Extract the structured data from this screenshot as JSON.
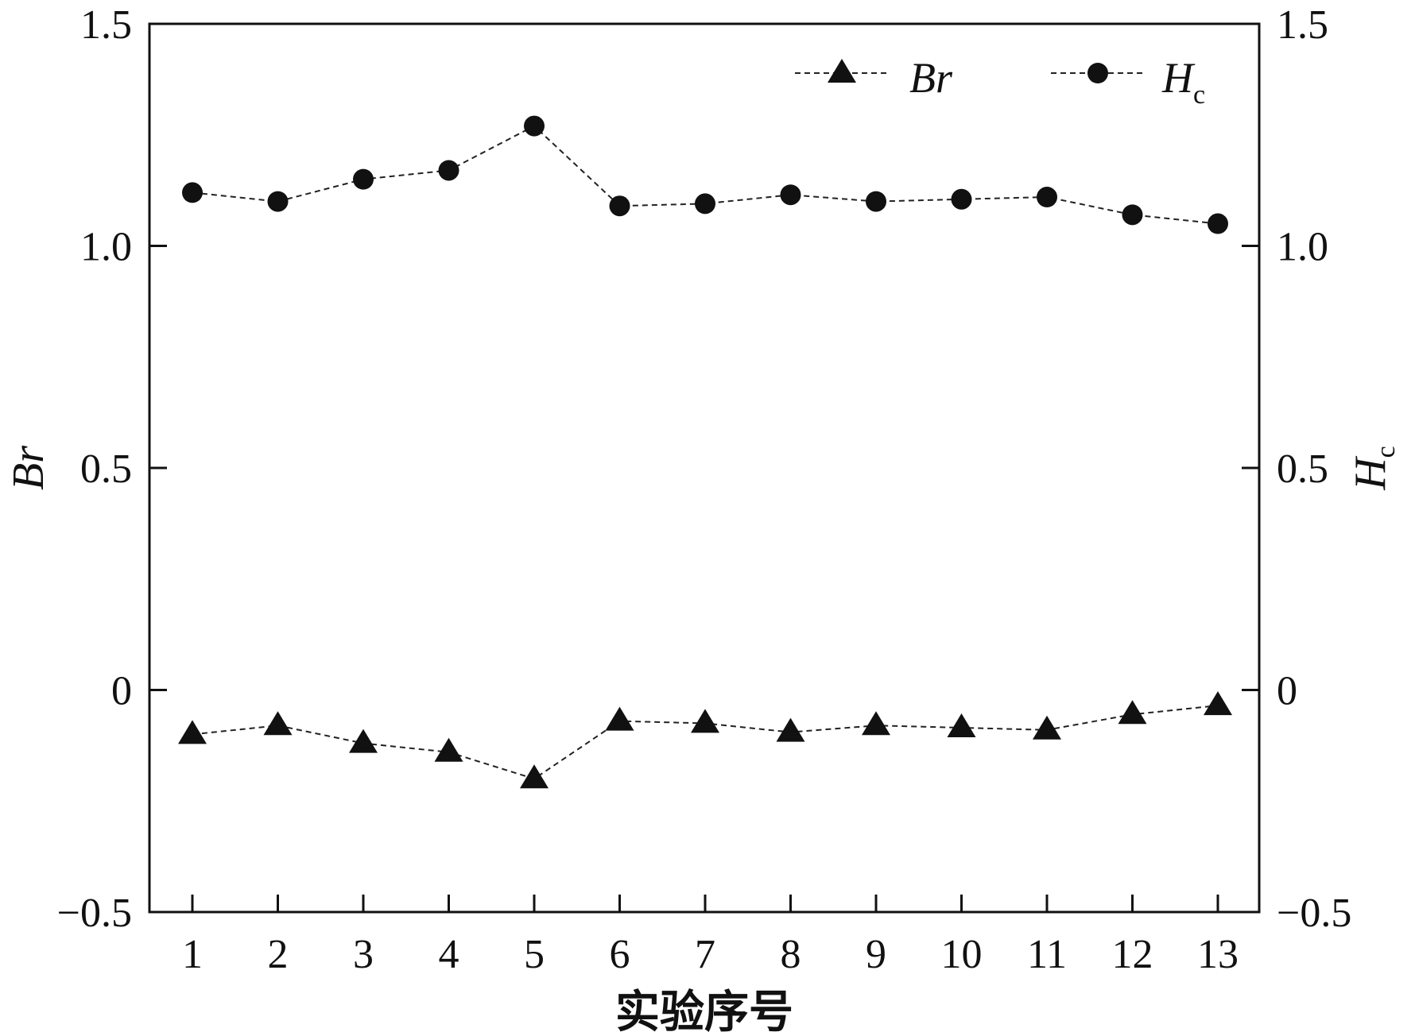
{
  "chart_data": {
    "type": "line",
    "xlabel": "实验序号",
    "categories": [
      "1",
      "2",
      "3",
      "4",
      "5",
      "6",
      "7",
      "8",
      "9",
      "10",
      "11",
      "12",
      "13"
    ],
    "y_left": {
      "label": "Br",
      "ylim": [
        -0.5,
        1.5
      ],
      "ticks": [
        "−0.5",
        "0",
        "0.5",
        "1.0",
        "1.5"
      ],
      "tick_values": [
        -0.5,
        0,
        0.5,
        1.0,
        1.5
      ]
    },
    "y_right": {
      "label_main": "H",
      "label_sub": "c",
      "ylim": [
        -0.5,
        1.5
      ],
      "ticks": [
        "−0.5",
        "0",
        "0.5",
        "1.0",
        "1.5"
      ],
      "tick_values": [
        -0.5,
        0,
        0.5,
        1.0,
        1.5
      ]
    },
    "series": [
      {
        "name": "Br",
        "marker": "triangle",
        "axis": "left",
        "values": [
          -0.1,
          -0.08,
          -0.12,
          -0.14,
          -0.2,
          -0.07,
          -0.075,
          -0.095,
          -0.08,
          -0.085,
          -0.09,
          -0.055,
          -0.035
        ]
      },
      {
        "name": "H",
        "name_sub": "c",
        "marker": "circle",
        "axis": "right",
        "values": [
          1.12,
          1.1,
          1.15,
          1.17,
          1.27,
          1.09,
          1.095,
          1.115,
          1.1,
          1.105,
          1.11,
          1.07,
          1.05
        ]
      }
    ],
    "legend": {
      "placement": "top-right",
      "items": [
        {
          "label": "Br"
        },
        {
          "label_main": "H",
          "label_sub": "c"
        }
      ]
    },
    "grid": false,
    "line_style": "dashed",
    "colors": {
      "line": "#222222",
      "marker": "#111111"
    }
  }
}
